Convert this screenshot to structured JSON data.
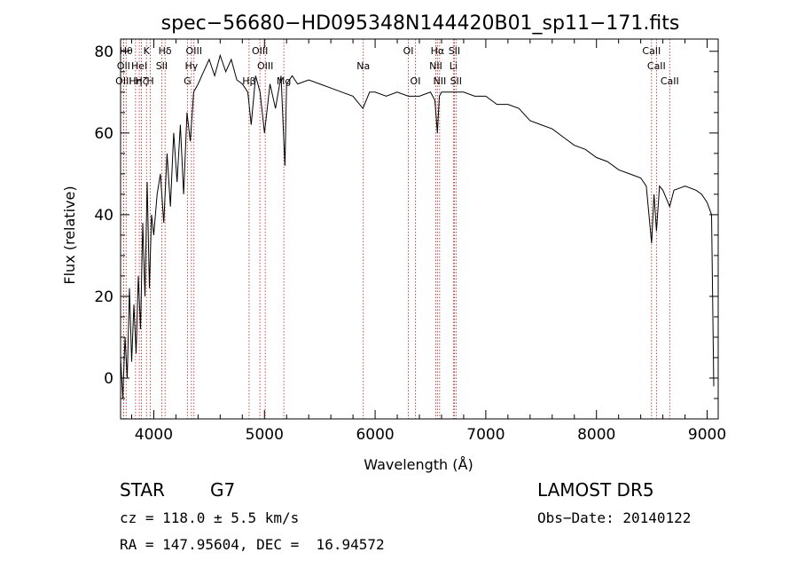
{
  "chart_data": {
    "type": "line",
    "title": "spec−56680−HD095348N144420B01_sp11−171.fits",
    "xlabel": "Wavelength (Å)",
    "ylabel": "Flux (relative)",
    "xlim": [
      3700,
      9100
    ],
    "ylim": [
      -10,
      83
    ],
    "xticks": [
      "4000",
      "5000",
      "6000",
      "7000",
      "8000",
      "9000"
    ],
    "xtick_values": [
      4000,
      5000,
      6000,
      7000,
      8000,
      9000
    ],
    "yticks": [
      "0",
      "20",
      "40",
      "60",
      "80"
    ],
    "ytick_values": [
      0,
      20,
      40,
      60,
      80
    ],
    "line_color": "#000000",
    "marker_color": "#b22222",
    "spectrum": {
      "x": [
        3700,
        3720,
        3740,
        3760,
        3780,
        3800,
        3820,
        3840,
        3860,
        3880,
        3900,
        3920,
        3940,
        3960,
        3980,
        4000,
        4030,
        4060,
        4090,
        4120,
        4150,
        4180,
        4210,
        4240,
        4270,
        4300,
        4330,
        4360,
        4400,
        4450,
        4500,
        4550,
        4600,
        4650,
        4700,
        4750,
        4800,
        4850,
        4880,
        4920,
        4960,
        5000,
        5050,
        5100,
        5150,
        5175,
        5185,
        5200,
        5250,
        5300,
        5400,
        5500,
        5600,
        5700,
        5800,
        5890,
        5950,
        6000,
        6100,
        6200,
        6300,
        6400,
        6500,
        6540,
        6563,
        6580,
        6600,
        6700,
        6800,
        6900,
        7000,
        7100,
        7200,
        7300,
        7400,
        7500,
        7600,
        7700,
        7800,
        7900,
        8000,
        8100,
        8200,
        8300,
        8400,
        8450,
        8498,
        8520,
        8542,
        8570,
        8600,
        8662,
        8700,
        8800,
        8900,
        8950,
        9000,
        9040,
        9060
      ],
      "y": [
        5,
        -5,
        10,
        0,
        22,
        4,
        18,
        6,
        25,
        12,
        38,
        20,
        48,
        22,
        40,
        35,
        45,
        50,
        38,
        55,
        42,
        60,
        48,
        62,
        45,
        65,
        58,
        70,
        72,
        75,
        78,
        74,
        79,
        75,
        78,
        73,
        72,
        70,
        62,
        74,
        70,
        60,
        72,
        66,
        74,
        58,
        52,
        72,
        74,
        72,
        73,
        72,
        71,
        70,
        69,
        66,
        70,
        70,
        69,
        70,
        69,
        69,
        70,
        68,
        60,
        69,
        70,
        70,
        70,
        69,
        69,
        67,
        67,
        66,
        63,
        62,
        61,
        59,
        57,
        56,
        54,
        53,
        51,
        50,
        49,
        47,
        33,
        45,
        36,
        47,
        46,
        42,
        46,
        47,
        46,
        45,
        43,
        40,
        -2
      ]
    },
    "line_markers": [
      {
        "x": 3750,
        "label": "Hθ",
        "row": 0
      },
      {
        "x": 3727,
        "label": "OII",
        "row": 1
      },
      {
        "x": 3727,
        "label": "OIII",
        "row": 2
      },
      {
        "x": 3835,
        "label": "Hη",
        "row": 2
      },
      {
        "x": 3869,
        "label": "HeI",
        "row": 1
      },
      {
        "x": 3889,
        "label": "Hζ",
        "row": 2
      },
      {
        "x": 3934,
        "label": "K",
        "row": 0
      },
      {
        "x": 3969,
        "label": "H",
        "row": 2
      },
      {
        "x": 4072,
        "label": "SII",
        "row": 1
      },
      {
        "x": 4102,
        "label": "Hδ",
        "row": 0
      },
      {
        "x": 4304,
        "label": "G",
        "row": 2
      },
      {
        "x": 4340,
        "label": "Hγ",
        "row": 1
      },
      {
        "x": 4363,
        "label": "OIII",
        "row": 0
      },
      {
        "x": 4861,
        "label": "Hβ",
        "row": 2
      },
      {
        "x": 4959,
        "label": "OIII",
        "row": 0
      },
      {
        "x": 5007,
        "label": "OIII",
        "row": 1
      },
      {
        "x": 5175,
        "label": "Mg",
        "row": 2
      },
      {
        "x": 5893,
        "label": "Na",
        "row": 1
      },
      {
        "x": 6300,
        "label": "OI",
        "row": 0
      },
      {
        "x": 6364,
        "label": "OI",
        "row": 2
      },
      {
        "x": 6548,
        "label": "NII",
        "row": 1
      },
      {
        "x": 6563,
        "label": "Hα",
        "row": 0
      },
      {
        "x": 6583,
        "label": "NII",
        "row": 2
      },
      {
        "x": 6707,
        "label": "Li",
        "row": 1
      },
      {
        "x": 6716,
        "label": "SII",
        "row": 0
      },
      {
        "x": 6731,
        "label": "SII",
        "row": 2
      },
      {
        "x": 8498,
        "label": "CaII",
        "row": 0
      },
      {
        "x": 8542,
        "label": "CaII",
        "row": 1
      },
      {
        "x": 8662,
        "label": "CaII",
        "row": 2
      }
    ]
  },
  "info": {
    "object_type": "STAR",
    "subclass": "G7",
    "survey": "LAMOST DR5",
    "redshift": "cz = 118.0 ± 5.5 km/s",
    "obs_date": "Obs−Date: 20140122",
    "coords": "RA = 147.95604, DEC =  16.94572"
  }
}
